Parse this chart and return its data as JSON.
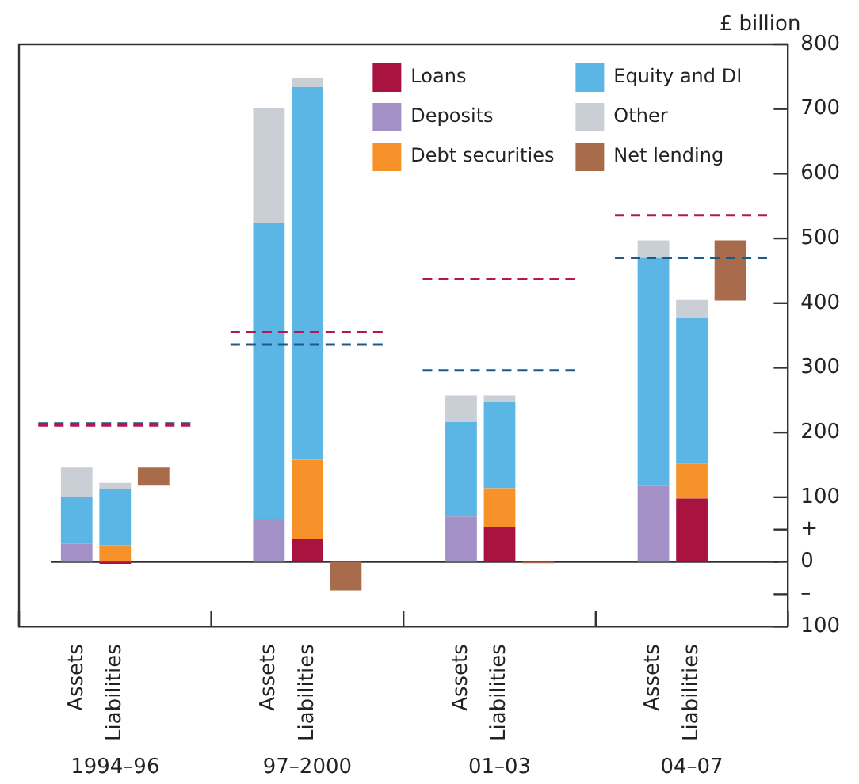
{
  "chart_data": {
    "type": "bar",
    "ylabel": "£ billion",
    "stacked": true,
    "legend": "top right",
    "categories": [
      null,
      "Assets",
      "Liabilities",
      null,
      null,
      null,
      "Assets",
      "Liabilities",
      null,
      null,
      null,
      "Assets",
      "Liabilities",
      null,
      null,
      null,
      "Assets",
      "Liabilities",
      null,
      null
    ],
    "series": [
      {
        "name": "Loans",
        "color": "#a8133f",
        "values": [
          null,
          null,
          -3,
          null,
          null,
          null,
          null,
          36,
          null,
          null,
          null,
          null,
          54,
          null,
          null,
          null,
          null,
          98,
          null,
          null
        ]
      },
      {
        "name": "Deposits",
        "color": "#a390c6",
        "values": [
          null,
          28,
          null,
          null,
          null,
          null,
          66,
          null,
          null,
          null,
          null,
          70,
          null,
          null,
          null,
          null,
          118,
          null,
          null,
          null
        ]
      },
      {
        "name": "Debt securities",
        "color": "#f7922a",
        "values": [
          null,
          null,
          26,
          null,
          null,
          null,
          null,
          122,
          null,
          null,
          null,
          null,
          60,
          null,
          null,
          null,
          null,
          54,
          null,
          null
        ]
      },
      {
        "name": "Equity and DI",
        "color": "#5bb5e5",
        "values": [
          null,
          72,
          86,
          null,
          null,
          null,
          458,
          576,
          null,
          null,
          null,
          146,
          133,
          null,
          null,
          null,
          352,
          225,
          null,
          null
        ]
      },
      {
        "name": "Other",
        "color": "#c9cfd4",
        "values": [
          null,
          46,
          10,
          null,
          null,
          null,
          178,
          14,
          null,
          null,
          null,
          41,
          10,
          null,
          null,
          null,
          27,
          28,
          null,
          null
        ]
      },
      {
        "name": "Net lending",
        "color": "#a86b4b",
        "values": [
          null,
          null,
          null,
          28,
          null,
          null,
          null,
          null,
          -44,
          null,
          null,
          null,
          null,
          -2,
          null,
          null,
          null,
          null,
          93,
          null
        ],
        "base": [
          null,
          null,
          null,
          118,
          null,
          null,
          null,
          null,
          0,
          null,
          null,
          null,
          null,
          0,
          null,
          null,
          null,
          null,
          404,
          null
        ]
      },
      {
        "type": "line",
        "color": "#b5194a",
        "line_style": "dashed",
        "marker": "none",
        "values": [
          211,
          211,
          211,
          211,
          211,
          null,
          null,
          null,
          null,
          null,
          null,
          null,
          null,
          null,
          null,
          null,
          null,
          null,
          null,
          null
        ]
      },
      {
        "type": "line",
        "color": "#1c5a8c",
        "line_style": "dashed",
        "marker": "none",
        "values": [
          214,
          214,
          214,
          214,
          214,
          null,
          null,
          null,
          null,
          null,
          null,
          null,
          null,
          null,
          null,
          null,
          null,
          null,
          null,
          null
        ]
      },
      {
        "type": "line",
        "color": "#b5194a",
        "line_style": "dashed",
        "marker": "none",
        "values": [
          null,
          null,
          null,
          null,
          null,
          355,
          355,
          355,
          355,
          355,
          null,
          null,
          null,
          null,
          null,
          null,
          null,
          null,
          null,
          null
        ]
      },
      {
        "type": "line",
        "color": "#1c5a8c",
        "line_style": "dashed",
        "marker": "none",
        "values": [
          null,
          null,
          null,
          null,
          null,
          336,
          336,
          336,
          336,
          336,
          null,
          null,
          null,
          null,
          null,
          null,
          null,
          null,
          null,
          null
        ]
      },
      {
        "type": "line",
        "color": "#b5194a",
        "line_style": "dashed",
        "marker": "none",
        "values": [
          null,
          null,
          null,
          null,
          null,
          null,
          null,
          null,
          null,
          null,
          437,
          437,
          437,
          437,
          437,
          null,
          null,
          null,
          null,
          null
        ]
      },
      {
        "type": "line",
        "color": "#1c5a8c",
        "line_style": "dashed",
        "marker": "none",
        "values": [
          null,
          null,
          null,
          null,
          null,
          null,
          null,
          null,
          null,
          null,
          296,
          296,
          296,
          296,
          296,
          null,
          null,
          null,
          null,
          null
        ]
      },
      {
        "type": "line",
        "color": "#b5194a",
        "line_style": "dashed",
        "marker": "none",
        "values": [
          null,
          null,
          null,
          null,
          null,
          null,
          null,
          null,
          null,
          null,
          null,
          null,
          null,
          null,
          null,
          536,
          536,
          536,
          536,
          536
        ]
      },
      {
        "type": "line",
        "color": "#1c5a8c",
        "line_style": "dashed",
        "marker": "none",
        "values": [
          null,
          null,
          null,
          null,
          null,
          null,
          null,
          null,
          null,
          null,
          null,
          null,
          null,
          null,
          null,
          470,
          470,
          470,
          470,
          470
        ]
      }
    ],
    "ylim": [
      -100,
      800
    ],
    "yticks": [
      800,
      700,
      600,
      500,
      400,
      300,
      200,
      100,
      {
        "value": 50,
        "label": "+"
      },
      0,
      {
        "value": -50,
        "label": "–"
      },
      {
        "value": -100,
        "label": "100"
      }
    ],
    "annotations": [
      "1994–96",
      "97–2000",
      "01–03",
      "04–07"
    ]
  }
}
